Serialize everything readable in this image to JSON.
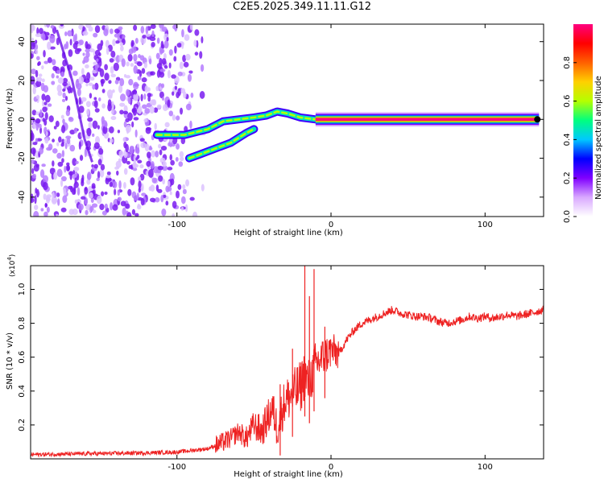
{
  "title": "C2E5.2025.349.11.11.G12",
  "chart_data": [
    {
      "type": "heatmap",
      "title": "",
      "xlabel": "Height of straight line (km)",
      "ylabel": "Frequency (Hz)",
      "xlim": [
        -195,
        138
      ],
      "ylim": [
        -50,
        49
      ],
      "xticks": [
        -100,
        0,
        100
      ],
      "yticks": [
        -40,
        -20,
        0,
        20,
        40
      ],
      "features": [
        {
          "name": "scatter noise",
          "x_range": [
            -195,
            -90
          ],
          "freq_range": [
            -50,
            49
          ],
          "amplitude": 0.05
        },
        {
          "name": "upper trace",
          "x": [
            -113,
            -105,
            -95,
            -80,
            -70,
            -60,
            -50,
            -42,
            -35,
            -28,
            -20,
            -10,
            0,
            10
          ],
          "y": [
            -8,
            -8,
            -8,
            -5,
            -1,
            0,
            1,
            2,
            4,
            3,
            1,
            0,
            -1,
            0
          ],
          "amplitude": 0.55
        },
        {
          "name": "lower trace",
          "x": [
            -92,
            -85,
            -75,
            -65,
            -55,
            -50
          ],
          "y": [
            -20,
            -18,
            -15,
            -12,
            -7,
            -5
          ],
          "amplitude": 0.45
        },
        {
          "name": "tone",
          "x_range": [
            -10,
            135
          ],
          "freq": 0,
          "amplitude": 1.0
        }
      ],
      "colorbar": {
        "label": "Normalized spectral amplitude",
        "range": [
          0,
          1
        ],
        "ticks": [
          "0.0",
          "0.2",
          "0.4",
          "0.6",
          "0.8"
        ],
        "colors": [
          "#ffffff",
          "#d9a9ff",
          "#8000ff",
          "#0000ff",
          "#00c8ff",
          "#00ff7f",
          "#b4ff00",
          "#ffd000",
          "#ff6000",
          "#ff0000",
          "#ff007f"
        ]
      }
    },
    {
      "type": "line",
      "title": "",
      "xlabel": "Height of straight line (km)",
      "ylabel": "SNR (10 * v/v)",
      "y_multiplier": "(x10",
      "y_multiplier_exp": "4",
      "xlim": [
        -195,
        138
      ],
      "ylim": [
        0,
        1.14
      ],
      "xticks": [
        -100,
        0,
        100
      ],
      "yticks": [
        0.2,
        0.4,
        0.6,
        0.8,
        1.0
      ],
      "series": [
        {
          "name": "SNR",
          "color": "#ee2222",
          "x": [
            -195,
            -160,
            -120,
            -100,
            -90,
            -80,
            -72,
            -65,
            -60,
            -55,
            -50,
            -45,
            -41,
            -38,
            -35,
            -30,
            -25,
            -20,
            -17,
            -15,
            -12,
            -10,
            -5,
            0,
            5,
            10,
            15,
            20,
            25,
            30,
            35,
            40,
            45,
            50,
            55,
            60,
            65,
            70,
            75,
            80,
            85,
            90,
            95,
            100,
            105,
            110,
            115,
            120,
            125,
            130,
            138
          ],
          "values": [
            0.025,
            0.03,
            0.035,
            0.04,
            0.05,
            0.06,
            0.09,
            0.12,
            0.16,
            0.12,
            0.2,
            0.16,
            0.24,
            0.3,
            0.18,
            0.34,
            0.38,
            0.42,
            0.5,
            0.44,
            0.5,
            0.56,
            0.6,
            0.64,
            0.62,
            0.7,
            0.76,
            0.8,
            0.82,
            0.84,
            0.86,
            0.88,
            0.86,
            0.85,
            0.84,
            0.84,
            0.83,
            0.81,
            0.8,
            0.81,
            0.82,
            0.84,
            0.83,
            0.84,
            0.83,
            0.84,
            0.85,
            0.84,
            0.85,
            0.86,
            0.88
          ]
        }
      ],
      "spikes": [
        {
          "x": -33,
          "value": 0.44
        },
        {
          "x": -25,
          "value": 0.65
        },
        {
          "x": -17,
          "value": 1.14
        },
        {
          "x": -14,
          "value": 0.96
        },
        {
          "x": -11,
          "value": 1.12
        },
        {
          "x": -4,
          "value": 0.78
        }
      ]
    }
  ]
}
